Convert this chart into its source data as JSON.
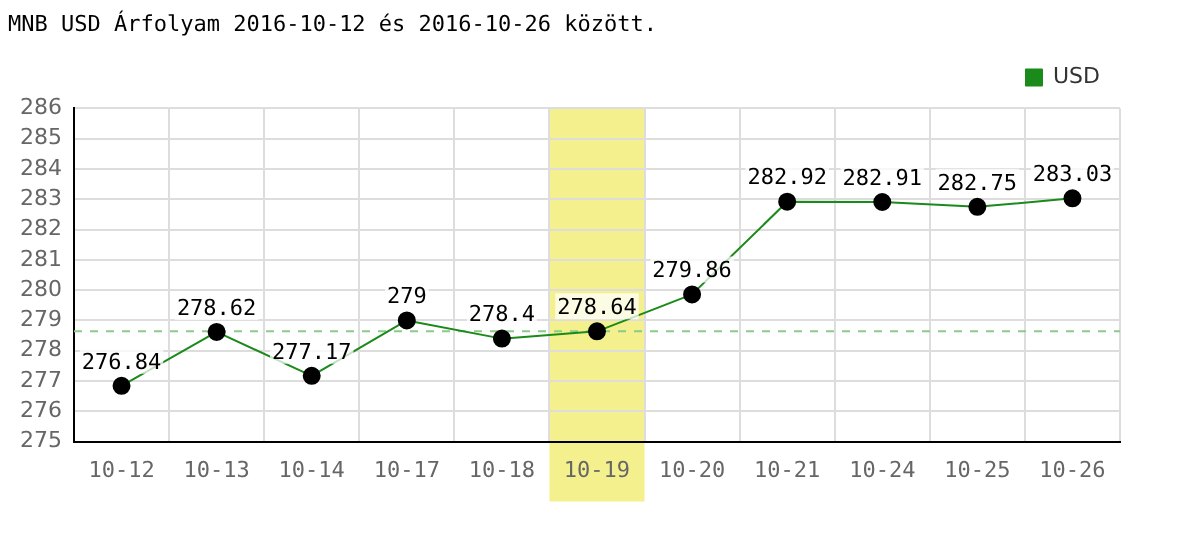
{
  "chart_data": {
    "type": "line",
    "title": "MNB USD Árfolyam 2016-10-12 és 2016-10-26 között.",
    "categories": [
      "10-12",
      "10-13",
      "10-14",
      "10-17",
      "10-18",
      "10-19",
      "10-20",
      "10-21",
      "10-24",
      "10-25",
      "10-26"
    ],
    "series": [
      {
        "name": "USD",
        "color": "#1a8a1a",
        "values": [
          276.84,
          278.62,
          277.17,
          279,
          278.4,
          278.64,
          279.86,
          282.92,
          282.91,
          282.75,
          283.03
        ]
      }
    ],
    "ylim": [
      275,
      286
    ],
    "yticks": [
      275,
      276,
      277,
      278,
      279,
      280,
      281,
      282,
      283,
      284,
      285,
      286
    ],
    "grid": true,
    "legend": "top right",
    "marker": "circle",
    "line_style": "solid",
    "data_labels": true,
    "ref_lines": [
      {
        "axis": "y",
        "value": 278.64,
        "color": "#88cc88",
        "line_style": "dashed"
      }
    ],
    "bands": [
      {
        "axis": "x",
        "from": "10-19",
        "to": "10-19",
        "color": "#f4f08e"
      }
    ]
  }
}
